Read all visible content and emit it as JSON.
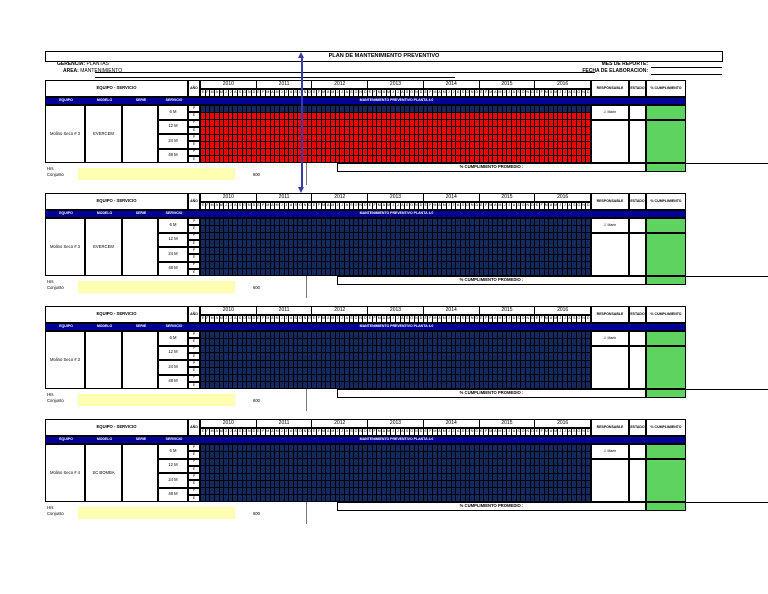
{
  "title": "PLAN DE MANTENIMIENTO PREVENTIVO",
  "meta": {
    "gerencia_label": "GERENCIA:",
    "gerencia_value": "PLANTAS",
    "area_label": "AREA:",
    "area_value": "MANTENIMIENTO",
    "mes_reporte_label": "MES DE REPORTE:",
    "fecha_elaboracion_label": "FECHA DE ELABORACION:"
  },
  "columns": {
    "equipo_servicio": "EQUIPO - SERVICIO",
    "ano": "AÑO",
    "equipo": "EQUIPO",
    "modelo": "MODELO",
    "serie": "SERIE",
    "servicio": "SERVICIO",
    "responsable": "RESPONSABLE",
    "estado": "ESTADO",
    "cumplimiento": "% CUMPLIMIENTO"
  },
  "band_title": "MANTENIMIENTO PREVENTIVO PLANTA 4.0",
  "promedio_label": "% CUMPLIMIENTO PROMEDIO :",
  "footer": {
    "hrs": "Hrs",
    "conjunto": "Conjunto",
    "hrs_value": "600"
  },
  "years": [
    "2010",
    "2011",
    "2012",
    "2013",
    "2014",
    "2015",
    "2016"
  ],
  "month_initials": [
    "E",
    "F",
    "M",
    "A",
    "M",
    "J",
    "J",
    "A",
    "S",
    "O",
    "N",
    "D"
  ],
  "services": [
    "6 M",
    "12 M",
    "24 M",
    "48 M"
  ],
  "subrow_labels": [
    "P",
    "E"
  ],
  "blocks": [
    {
      "equipo": "Molino Seco # 3",
      "modelo": "EVERCEM",
      "serie": "",
      "responsable": "J. Marin",
      "row_fills": [
        "navy",
        "red",
        "red",
        "red",
        "red",
        "red",
        "red",
        "red"
      ]
    },
    {
      "equipo": "Molino Seco # 3",
      "modelo": "EVERCEM",
      "serie": "",
      "responsable": "J. Marin",
      "row_fills": [
        "navy",
        "navy",
        "navy",
        "navy",
        "navy",
        "navy",
        "navy",
        "navy"
      ]
    },
    {
      "equipo": "Molino Seco # 3",
      "modelo": "",
      "serie": "",
      "responsable": "J. Marin",
      "row_fills": [
        "navy",
        "navy",
        "navy",
        "navy",
        "navy",
        "navy",
        "navy",
        "navy"
      ]
    },
    {
      "equipo": "Molino Seco # 4",
      "modelo": "SC BOMBA",
      "serie": "",
      "responsable": "J. Marin",
      "row_fills": [
        "navy",
        "navy",
        "navy",
        "navy",
        "navy",
        "navy",
        "navy",
        "navy"
      ]
    }
  ],
  "colors": {
    "band_blue": "#000099",
    "navy_cell": "#14295e",
    "red_cell": "#ee0505",
    "green": "#5fd35f",
    "yellow": "#ffffb2",
    "arrow_blue": "#3a3aad",
    "stub_gray": "#777777"
  }
}
